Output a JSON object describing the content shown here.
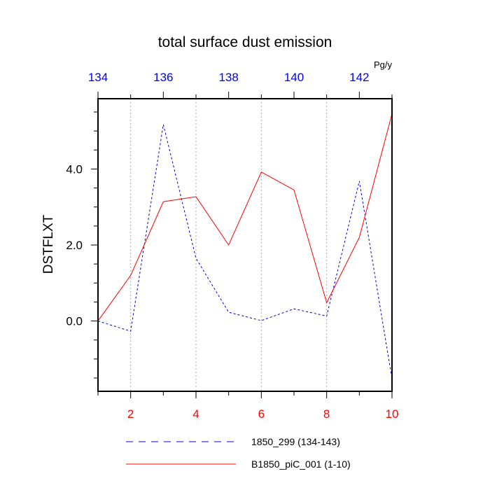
{
  "chart_data": {
    "type": "line",
    "title": "total surface dust emission",
    "units": "Pg/y",
    "ylabel": "DSTFLXT",
    "ylim": [
      -1.85,
      5.85
    ],
    "y_ticks": [
      0.0,
      2.0,
      4.0
    ],
    "y_tick_labels": [
      "0.0",
      "2.0",
      "4.0"
    ],
    "x_bottom": {
      "range": [
        1,
        10
      ],
      "ticks": [
        2,
        4,
        6,
        8,
        10
      ],
      "tick_labels": [
        "2",
        "4",
        "6",
        "8",
        "10"
      ],
      "color": "#ff0000"
    },
    "x_top": {
      "range": [
        134,
        143
      ],
      "ticks": [
        134,
        136,
        138,
        140,
        142
      ],
      "tick_labels": [
        "134",
        "136",
        "138",
        "140",
        "142"
      ],
      "color": "#0000ff"
    },
    "grid": "vertical dotted",
    "series": [
      {
        "name": "1850_299 (134-143)",
        "axis": "top",
        "color": "#0000cc",
        "dash": "dashed",
        "x": [
          134,
          135,
          136,
          137,
          138,
          139,
          140,
          141,
          142,
          143
        ],
        "values": [
          0.0,
          -0.27,
          5.17,
          1.65,
          0.23,
          0.01,
          0.32,
          0.13,
          3.68,
          -1.52
        ]
      },
      {
        "name": "B1850_piC_001 (1-10)",
        "axis": "bottom",
        "color": "#ff0000",
        "dash": "solid",
        "x": [
          1,
          2,
          3,
          4,
          5,
          6,
          7,
          8,
          9,
          10
        ],
        "values": [
          0.0,
          1.2,
          3.14,
          3.27,
          2.0,
          3.92,
          3.45,
          0.48,
          2.2,
          5.45
        ]
      }
    ],
    "legend": "bottom"
  }
}
